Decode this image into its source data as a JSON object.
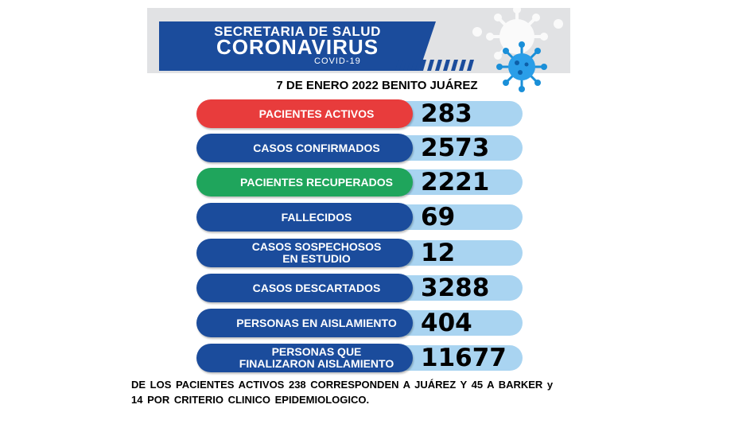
{
  "header": {
    "secretaria": "SECRETARIA DE SALUD",
    "title": "CORONAVIRUS",
    "subtitle": "COVID-19"
  },
  "date_line": "7 DE ENERO 2022 BENITO JUÁREZ",
  "colors": {
    "active": "#e83c3c",
    "blue": "#1b4c9c",
    "green": "#1fa55c",
    "value_bg": "#a9d4f1"
  },
  "stats": [
    {
      "label": "PACIENTES ACTIVOS",
      "value": "283"
    },
    {
      "label": "CASOS CONFIRMADOS",
      "value": "2573"
    },
    {
      "label": "PACIENTES RECUPERADOS",
      "value": "2221"
    },
    {
      "label": "FALLECIDOS",
      "value": "69"
    },
    {
      "label_line1": "CASOS SOSPECHOSOS",
      "label_line2": "EN ESTUDIO",
      "value": "12"
    },
    {
      "label": "CASOS DESCARTADOS",
      "value": "3288"
    },
    {
      "label": "PERSONAS EN AISLAMIENTO",
      "value": "404"
    },
    {
      "label_line1": "PERSONAS QUE",
      "label_line2": "FINALIZARON AISLAMIENTO",
      "value": "11677"
    }
  ],
  "footer": {
    "line1": "DE LOS PACIENTES ACTIVOS 238 CORRESPONDEN A JUÁREZ Y 45 A BARKER  y",
    "line2": "14 POR CRITERIO CLINICO EPIDEMIOLOGICO."
  }
}
